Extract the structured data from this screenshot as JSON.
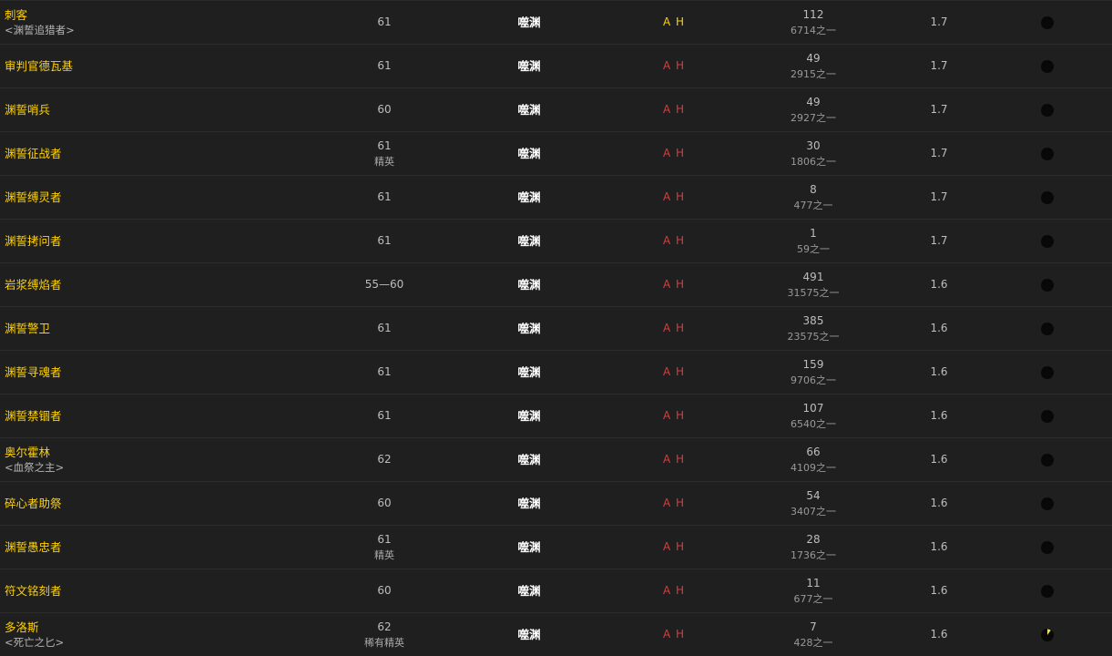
{
  "colors": {
    "name": "#ffd100",
    "side_yellow": "#ffd100",
    "side_red": "#e03a3a",
    "pie_fill": "#f0e060"
  },
  "rows": [
    {
      "name": "刺客",
      "title": "<渊誓追猎者>",
      "level": "61",
      "class": "",
      "zone": "噬渊",
      "side": "A H",
      "side_color": "#ffd100",
      "count": "112",
      "of": "6714之一",
      "pct": "1.7",
      "pie": 0
    },
    {
      "name": "审判官德瓦基",
      "title": "",
      "level": "61",
      "class": "",
      "zone": "噬渊",
      "side": "A H",
      "side_color": "#e03a3a",
      "count": "49",
      "of": "2915之一",
      "pct": "1.7",
      "pie": 0
    },
    {
      "name": "渊誓哨兵",
      "title": "",
      "level": "60",
      "class": "",
      "zone": "噬渊",
      "side": "A H",
      "side_color": "#e03a3a",
      "count": "49",
      "of": "2927之一",
      "pct": "1.7",
      "pie": 0
    },
    {
      "name": "渊誓征战者",
      "title": "",
      "level": "61",
      "class": "精英",
      "zone": "噬渊",
      "side": "A H",
      "side_color": "#e03a3a",
      "count": "30",
      "of": "1806之一",
      "pct": "1.7",
      "pie": 0
    },
    {
      "name": "渊誓缚灵者",
      "title": "",
      "level": "61",
      "class": "",
      "zone": "噬渊",
      "side": "A H",
      "side_color": "#e03a3a",
      "count": "8",
      "of": "477之一",
      "pct": "1.7",
      "pie": 0
    },
    {
      "name": "渊誓拷问者",
      "title": "",
      "level": "61",
      "class": "",
      "zone": "噬渊",
      "side": "A H",
      "side_color": "#e03a3a",
      "count": "1",
      "of": "59之一",
      "pct": "1.7",
      "pie": 0
    },
    {
      "name": "岩浆缚焰者",
      "title": "",
      "level": "55—60",
      "class": "",
      "zone": "噬渊",
      "side": "A H",
      "side_color": "#e03a3a",
      "count": "491",
      "of": "31575之一",
      "pct": "1.6",
      "pie": 0
    },
    {
      "name": "渊誓警卫",
      "title": "",
      "level": "61",
      "class": "",
      "zone": "噬渊",
      "side": "A H",
      "side_color": "#e03a3a",
      "count": "385",
      "of": "23575之一",
      "pct": "1.6",
      "pie": 0
    },
    {
      "name": "渊誓寻魂者",
      "title": "",
      "level": "61",
      "class": "",
      "zone": "噬渊",
      "side": "A H",
      "side_color": "#e03a3a",
      "count": "159",
      "of": "9706之一",
      "pct": "1.6",
      "pie": 0
    },
    {
      "name": "渊誓禁锢者",
      "title": "",
      "level": "61",
      "class": "",
      "zone": "噬渊",
      "side": "A H",
      "side_color": "#e03a3a",
      "count": "107",
      "of": "6540之一",
      "pct": "1.6",
      "pie": 0
    },
    {
      "name": "奥尔霍林",
      "title": "<血祭之主>",
      "level": "62",
      "class": "",
      "zone": "噬渊",
      "side": "A H",
      "side_color": "#e03a3a",
      "count": "66",
      "of": "4109之一",
      "pct": "1.6",
      "pie": 0
    },
    {
      "name": "碎心者助祭",
      "title": "",
      "level": "60",
      "class": "",
      "zone": "噬渊",
      "side": "A H",
      "side_color": "#e03a3a",
      "count": "54",
      "of": "3407之一",
      "pct": "1.6",
      "pie": 0
    },
    {
      "name": "渊誓愚忠者",
      "title": "",
      "level": "61",
      "class": "精英",
      "zone": "噬渊",
      "side": "A H",
      "side_color": "#e03a3a",
      "count": "28",
      "of": "1736之一",
      "pct": "1.6",
      "pie": 0
    },
    {
      "name": "符文铭刻者",
      "title": "",
      "level": "60",
      "class": "",
      "zone": "噬渊",
      "side": "A H",
      "side_color": "#e03a3a",
      "count": "11",
      "of": "677之一",
      "pct": "1.6",
      "pie": 0
    },
    {
      "name": "多洛斯",
      "title": "<死亡之匕>",
      "level": "62",
      "class": "稀有精英",
      "zone": "噬渊",
      "side": "A H",
      "side_color": "#e03a3a",
      "count": "7",
      "of": "428之一",
      "pct": "1.6",
      "pie": 0.1
    }
  ]
}
